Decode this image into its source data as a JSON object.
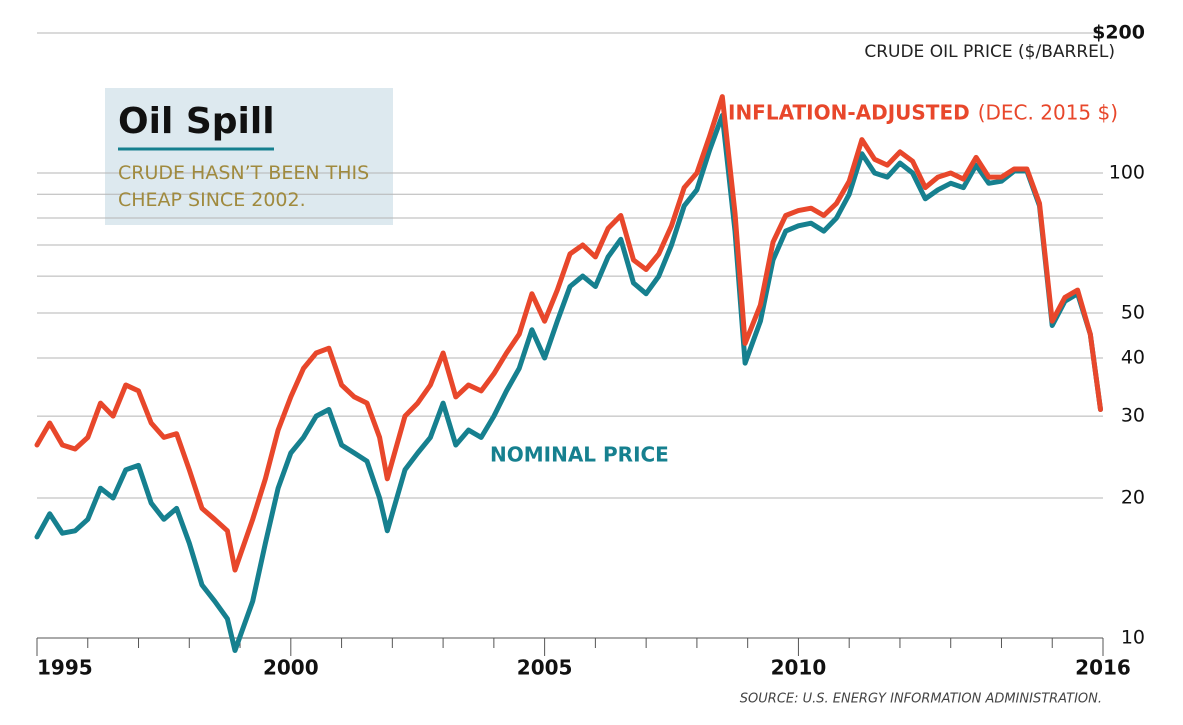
{
  "chart_data": {
    "type": "line",
    "title": "Oil Spill",
    "subtitle": "CRUDE HASN’T BEEN THIS CHEAP SINCE 2002.",
    "y_axis_label": "CRUDE OIL PRICE ($/BARREL)",
    "unit_note": "(DEC. 2015 $)",
    "source": "SOURCE: U.S. ENERGY INFORMATION ADMINISTRATION.",
    "log_scale": true,
    "grid": true,
    "xlim": [
      1995,
      2016
    ],
    "xticks": [
      1995,
      2000,
      2005,
      2010,
      2016
    ],
    "x_minor_ticks": [
      1996,
      1997,
      1998,
      1999,
      2001,
      2002,
      2003,
      2004,
      2006,
      2007,
      2008,
      2009,
      2011,
      2012,
      2013,
      2014,
      2015
    ],
    "ylim": [
      10,
      200
    ],
    "yticks": [
      10,
      20,
      30,
      40,
      50,
      100,
      {
        "value": 200,
        "label": "$200"
      }
    ],
    "y_minor_gridlines": [
      60,
      70,
      80,
      90
    ],
    "x": [
      1995.0,
      1995.25,
      1995.5,
      1995.75,
      1996.0,
      1996.25,
      1996.5,
      1996.75,
      1997.0,
      1997.25,
      1997.5,
      1997.75,
      1998.0,
      1998.25,
      1998.5,
      1998.75,
      1998.9,
      1999.25,
      1999.5,
      1999.75,
      2000.0,
      2000.25,
      2000.5,
      2000.75,
      2001.0,
      2001.25,
      2001.5,
      2001.75,
      2001.9,
      2002.25,
      2002.5,
      2002.75,
      2003.0,
      2003.25,
      2003.5,
      2003.75,
      2004.0,
      2004.25,
      2004.5,
      2004.75,
      2005.0,
      2005.25,
      2005.5,
      2005.75,
      2006.0,
      2006.25,
      2006.5,
      2006.75,
      2007.0,
      2007.25,
      2007.5,
      2007.75,
      2008.0,
      2008.25,
      2008.5,
      2008.75,
      2008.95,
      2009.25,
      2009.5,
      2009.75,
      2010.0,
      2010.25,
      2010.5,
      2010.75,
      2011.0,
      2011.25,
      2011.5,
      2011.75,
      2012.0,
      2012.25,
      2012.5,
      2012.75,
      2013.0,
      2013.25,
      2013.5,
      2013.75,
      2014.0,
      2014.25,
      2014.5,
      2014.75,
      2015.0,
      2015.25,
      2015.5,
      2015.75,
      2015.95
    ],
    "series": [
      {
        "name": "NOMINAL PRICE",
        "color": "#16808f",
        "values": [
          16.5,
          18.5,
          16.8,
          17,
          18,
          21,
          20,
          23,
          23.5,
          19.5,
          18,
          19,
          16,
          13,
          12,
          11,
          9.4,
          12,
          16,
          21,
          25,
          27,
          30,
          31,
          26,
          25,
          24,
          20,
          17,
          23,
          25,
          27,
          32,
          26,
          28,
          27,
          30,
          34,
          38,
          46,
          40,
          48,
          57,
          60,
          57,
          66,
          72,
          58,
          55,
          60,
          70,
          85,
          92,
          112,
          133,
          75,
          39,
          48,
          65,
          75,
          77,
          78,
          75,
          80,
          90,
          110,
          100,
          98,
          105,
          100,
          88,
          92,
          95,
          93,
          104,
          95,
          96,
          101,
          101,
          85,
          47,
          53,
          55,
          45,
          31
        ]
      },
      {
        "name": "INFLATION-ADJUSTED",
        "color": "#e8472b",
        "values": [
          26,
          29,
          26,
          25.5,
          27,
          32,
          30,
          35,
          34,
          29,
          27,
          27.5,
          23,
          19,
          18,
          17,
          14,
          18,
          22,
          28,
          33,
          38,
          41,
          42,
          35,
          33,
          32,
          27,
          22,
          30,
          32,
          35,
          41,
          33,
          35,
          34,
          37,
          41,
          45,
          55,
          48,
          56,
          67,
          70,
          66,
          76,
          81,
          65,
          62,
          67,
          77,
          93,
          100,
          120,
          146,
          82,
          43,
          52,
          71,
          81,
          83,
          84,
          81,
          86,
          96,
          118,
          107,
          104,
          111,
          106,
          93,
          98,
          100,
          97,
          108,
          98,
          98,
          102,
          102,
          86,
          48,
          54,
          56,
          45,
          31
        ]
      }
    ]
  }
}
